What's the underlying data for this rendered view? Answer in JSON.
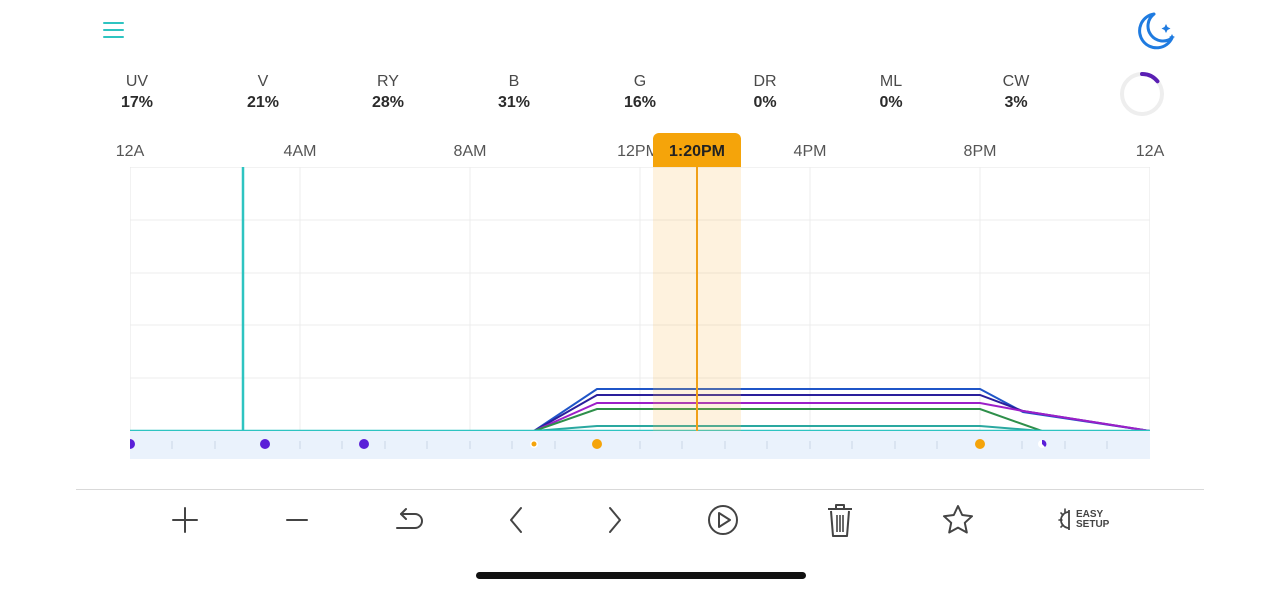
{
  "header": {
    "menu_icon": "hamburger-menu-icon",
    "night_mode_icon": "moon-stars-icon"
  },
  "channels": [
    {
      "label": "UV",
      "value": "17%"
    },
    {
      "label": "V",
      "value": "21%"
    },
    {
      "label": "RY",
      "value": "28%"
    },
    {
      "label": "B",
      "value": "31%"
    },
    {
      "label": "G",
      "value": "16%"
    },
    {
      "label": "DR",
      "value": "0%"
    },
    {
      "label": "ML",
      "value": "0%"
    },
    {
      "label": "CW",
      "value": "3%"
    }
  ],
  "intensity_ring": {
    "value_fraction": 0.14,
    "color": "#5a1fb3"
  },
  "timeline": {
    "ticks": [
      "12A",
      "4AM",
      "8AM",
      "12PM",
      "4PM",
      "8PM",
      "12A"
    ],
    "current_time": "1:20PM",
    "accent_color": "#f5a40a"
  },
  "toolbar": {
    "add_icon": "plus-icon",
    "remove_icon": "minus-icon",
    "undo_icon": "undo-icon",
    "prev_icon": "chevron-left-icon",
    "next_icon": "chevron-right-icon",
    "play_icon": "play-circle-icon",
    "delete_icon": "trash-icon",
    "favorite_icon": "star-icon",
    "easy_setup_line1": "EASY",
    "easy_setup_line2": "SETUP"
  }
}
